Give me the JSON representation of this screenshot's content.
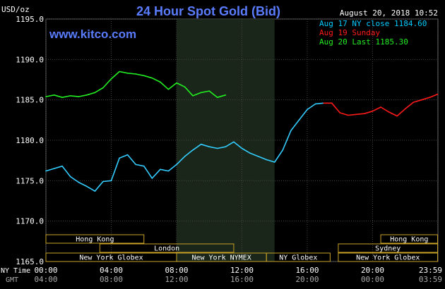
{
  "chart_data": {
    "type": "line",
    "title": "24 Hour Spot Gold (Bid)",
    "ylabel": "USD/oz",
    "watermark": "www.kitco.com",
    "timestamp": "August 20, 2018 10:52",
    "ylim": [
      1165.0,
      1195.0
    ],
    "y_ticks": [
      "1195.0",
      "1190.0",
      "1185.0",
      "1180.0",
      "1175.0",
      "1170.0",
      "1165.0"
    ],
    "x_axis_label_ny": "NY Time",
    "x_axis_label_gmt": "GMT",
    "x_ticks_ny": [
      "00:00",
      "04:00",
      "08:00",
      "12:00",
      "16:00",
      "20:00",
      "23:59"
    ],
    "x_ticks_gmt": [
      "04:00",
      "08:00",
      "12:00",
      "16:00",
      "20:00",
      "00:00",
      "03:59"
    ],
    "x_tick_hours": [
      0,
      4,
      8,
      12,
      16,
      20,
      23.98
    ],
    "shaded_region_hours": [
      8,
      14
    ],
    "legend": [
      {
        "label": "Aug 17 NY close 1184.60",
        "color": "#00ccff"
      },
      {
        "label": "Aug 19 Sunday",
        "color": "#ff1a1a"
      },
      {
        "label": "Aug 20 Last 1185.30",
        "color": "#22ee22"
      }
    ],
    "series": [
      {
        "name": "Aug 17 NY close 1184.60",
        "color": "#33ccff",
        "x": [
          0,
          0.5,
          1,
          1.5,
          2,
          2.5,
          3,
          3.5,
          4,
          4.5,
          5,
          5.5,
          6,
          6.5,
          7,
          7.5,
          8,
          8.5,
          9,
          9.5,
          10,
          10.5,
          11,
          11.5,
          12,
          12.5,
          13,
          13.5,
          14,
          14.5,
          15,
          15.5,
          16,
          16.5,
          17
        ],
        "y": [
          1176.2,
          1176.5,
          1176.8,
          1175.5,
          1174.8,
          1174.3,
          1173.7,
          1174.9,
          1175.0,
          1177.8,
          1178.2,
          1177.0,
          1176.8,
          1175.3,
          1176.4,
          1176.2,
          1177.0,
          1178.0,
          1178.8,
          1179.5,
          1179.2,
          1179.0,
          1179.2,
          1179.8,
          1179.0,
          1178.4,
          1178.0,
          1177.6,
          1177.3,
          1178.8,
          1181.2,
          1182.5,
          1183.8,
          1184.5,
          1184.6
        ]
      },
      {
        "name": "Aug 19 Sunday",
        "color": "#ff1a1a",
        "x": [
          17,
          17.5,
          18,
          18.5,
          19,
          19.5,
          20,
          20.5,
          21,
          21.5,
          22,
          22.5,
          23,
          23.5,
          23.98
        ],
        "y": [
          1184.6,
          1184.6,
          1183.4,
          1183.1,
          1183.2,
          1183.3,
          1183.6,
          1184.1,
          1183.5,
          1183.0,
          1183.9,
          1184.7,
          1185.0,
          1185.3,
          1185.7
        ]
      },
      {
        "name": "Aug 20 Last 1185.30",
        "color": "#22ee22",
        "x": [
          0,
          0.5,
          1,
          1.5,
          2,
          2.5,
          3,
          3.5,
          4,
          4.5,
          5,
          5.5,
          6,
          6.5,
          7,
          7.5,
          8,
          8.5,
          9,
          9.5,
          10,
          10.5,
          11
        ],
        "y": [
          1185.4,
          1185.6,
          1185.3,
          1185.5,
          1185.4,
          1185.6,
          1185.9,
          1186.5,
          1187.6,
          1188.5,
          1188.3,
          1188.2,
          1188.0,
          1187.7,
          1187.2,
          1186.3,
          1187.1,
          1186.6,
          1185.5,
          1185.9,
          1186.1,
          1185.3,
          1185.6
        ]
      }
    ],
    "sessions": [
      {
        "label": "Hong Kong",
        "start": 0,
        "end": 6,
        "row": 0
      },
      {
        "label": "Hong Kong",
        "start": 20.5,
        "end": 23.98,
        "row": 0
      },
      {
        "label": "London",
        "start": 3.3,
        "end": 11.5,
        "row": 1
      },
      {
        "label": "Sydney",
        "start": 17.9,
        "end": 23.98,
        "row": 1
      },
      {
        "label": "New York Globex",
        "start": 0,
        "end": 8,
        "row": 2
      },
      {
        "label": "New York NYMEX",
        "start": 8,
        "end": 13.5,
        "row": 2
      },
      {
        "label": "NY Globex",
        "start": 13.5,
        "end": 17.4,
        "row": 2
      },
      {
        "label": "New York Globex",
        "start": 17.9,
        "end": 23.98,
        "row": 2
      }
    ]
  }
}
